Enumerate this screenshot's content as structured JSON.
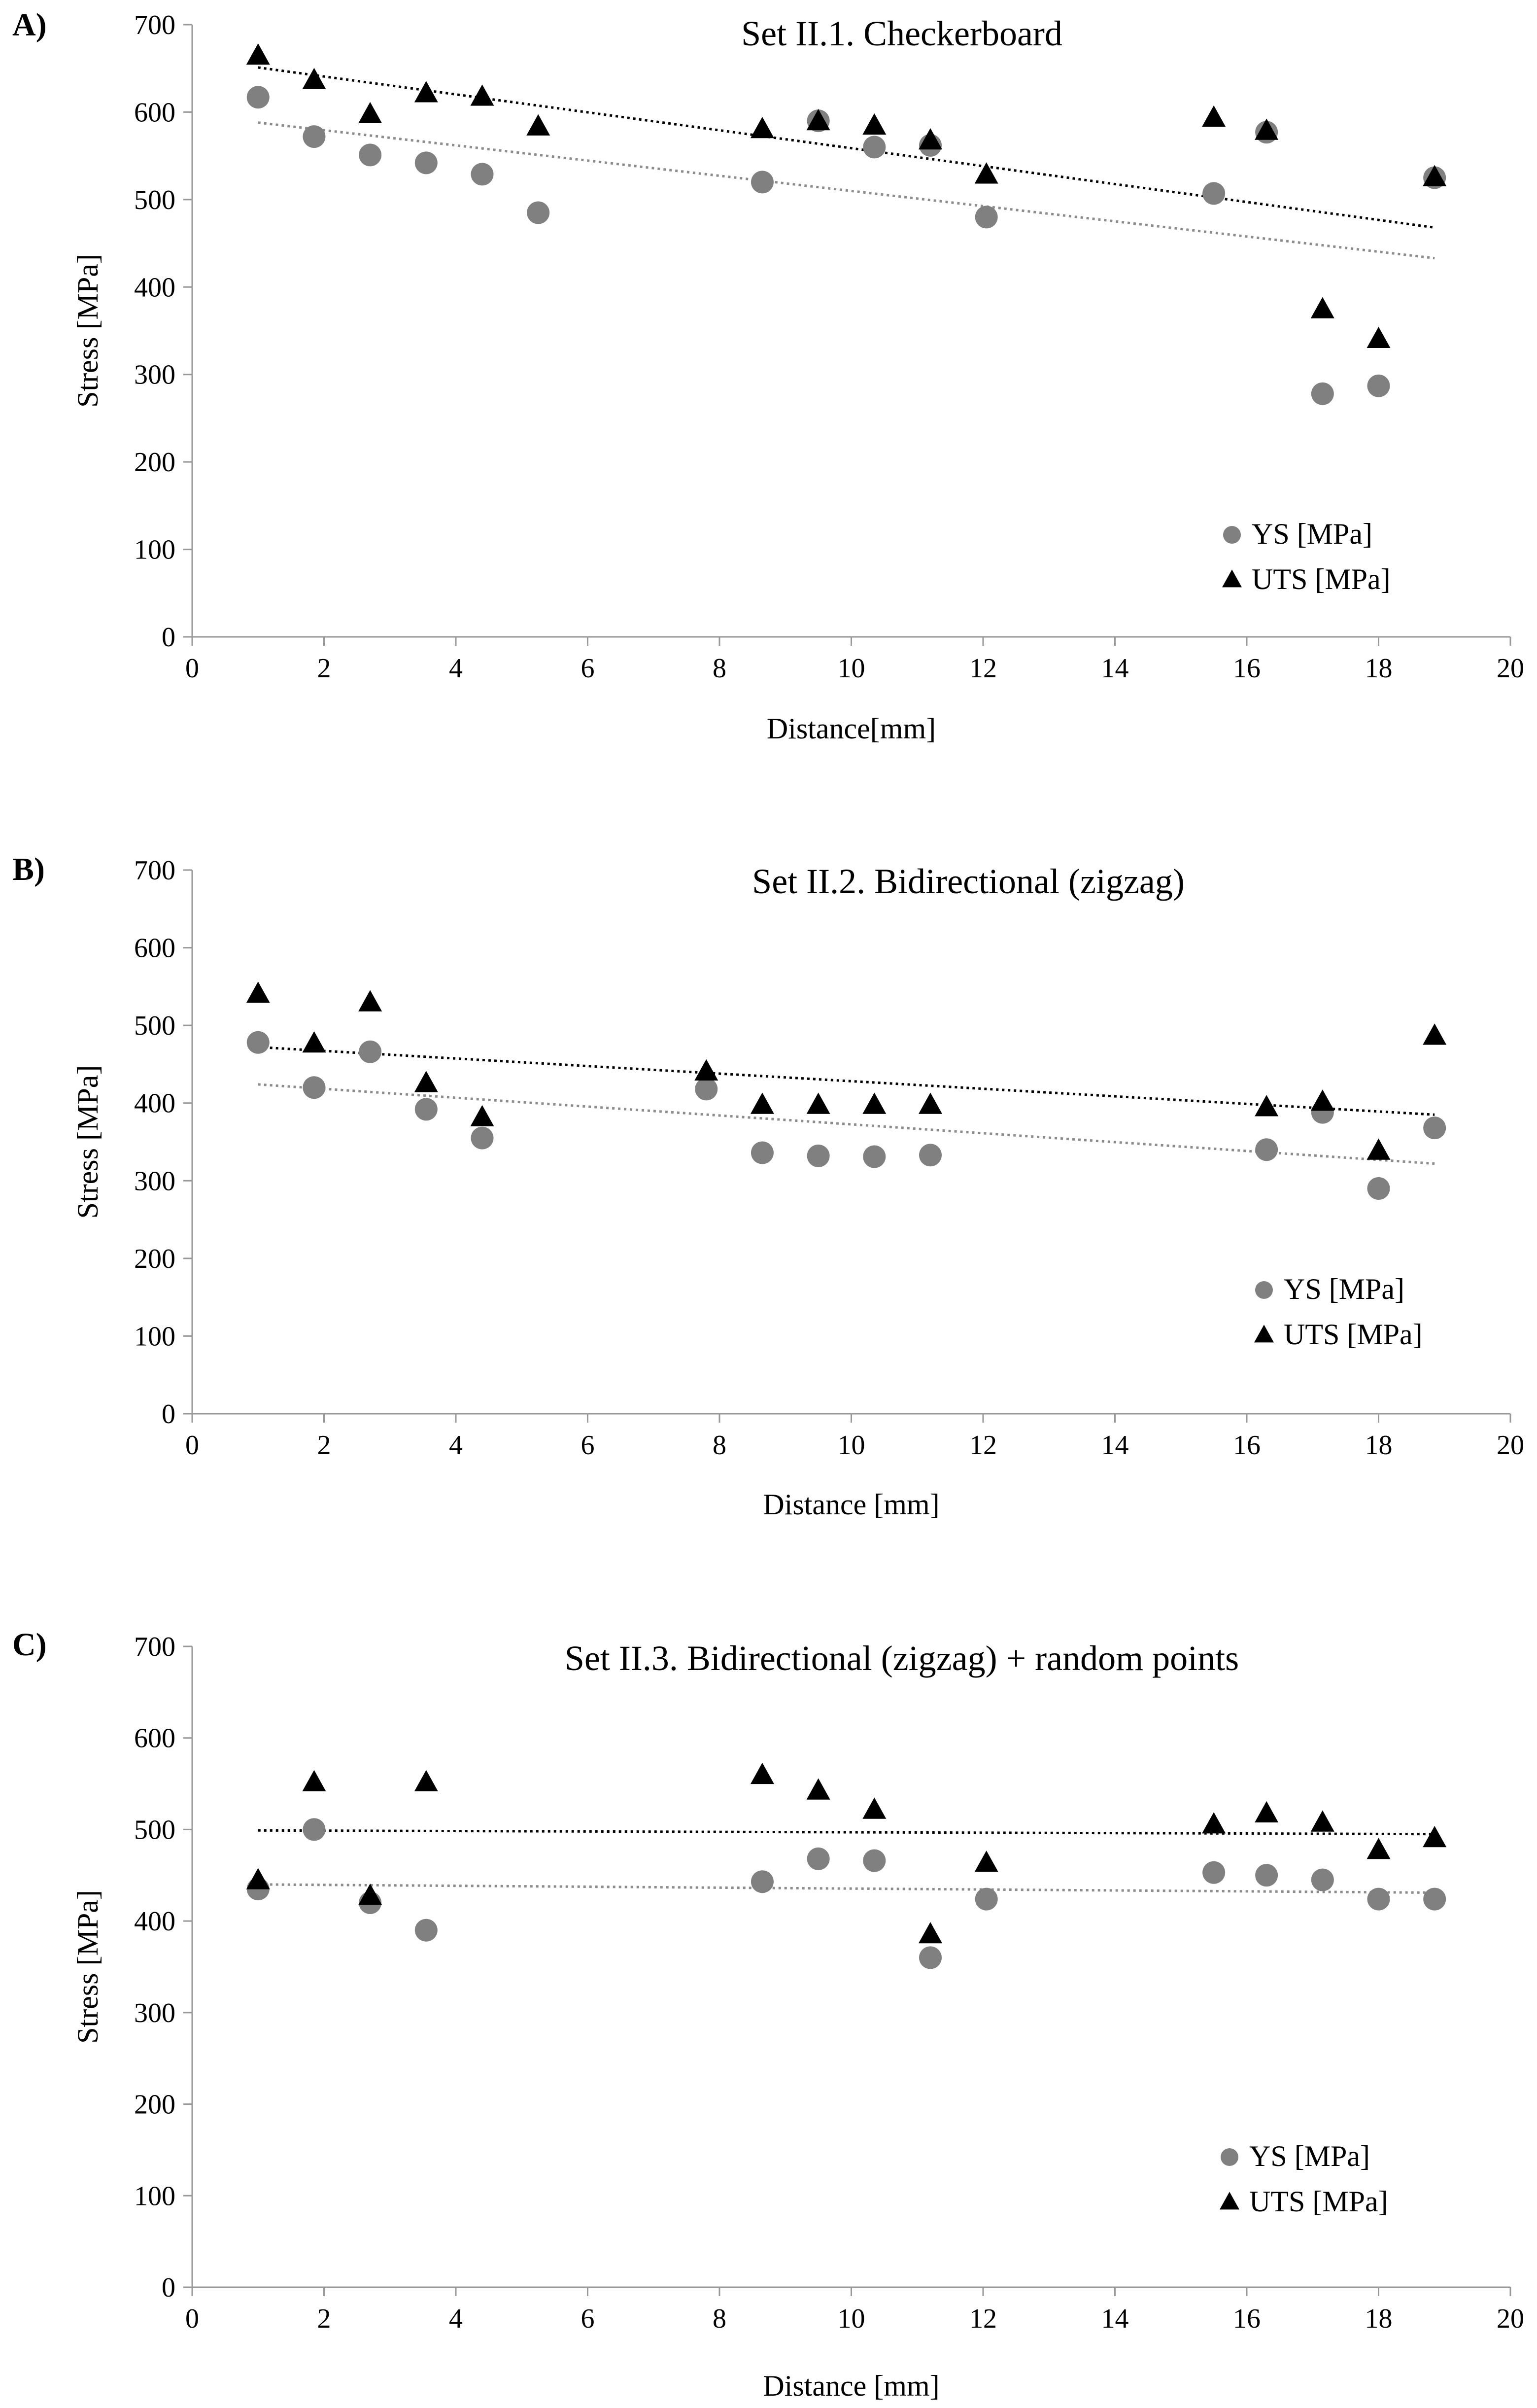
{
  "colors": {
    "ys": "#808080",
    "uts": "#000000",
    "ys_trend": "#8c8c8c",
    "uts_trend": "#000000",
    "axis": "#999999"
  },
  "chart_data": [
    {
      "panel": "A)",
      "type": "scatter",
      "title": "Set II.1. Checkerboard",
      "xlabel": "Distance[mm]",
      "ylabel": "Stress [MPa]",
      "xlim": [
        0,
        20
      ],
      "ylim": [
        0,
        700
      ],
      "xticks": [
        0,
        2,
        4,
        6,
        8,
        10,
        12,
        14,
        16,
        18,
        20
      ],
      "yticks": [
        0,
        100,
        200,
        300,
        400,
        500,
        600,
        700
      ],
      "grid": false,
      "legend_position": "bottom-right",
      "series": [
        {
          "name": "YS [MPa]",
          "marker": "circle",
          "x": [
            1.0,
            1.85,
            2.7,
            3.55,
            4.4,
            5.25,
            8.65,
            9.5,
            10.35,
            11.2,
            12.05,
            15.5,
            16.3,
            17.15,
            18.0,
            18.85
          ],
          "y": [
            617,
            572,
            551,
            542,
            529,
            485,
            520,
            590,
            560,
            562,
            480,
            507,
            577,
            278,
            287,
            525
          ],
          "trend": {
            "x": [
              1.0,
              18.85
            ],
            "y": [
              588,
              433
            ]
          }
        },
        {
          "name": "UTS [MPa]",
          "marker": "triangle",
          "x": [
            1.0,
            1.85,
            2.7,
            3.55,
            4.4,
            5.25,
            8.65,
            9.5,
            10.35,
            11.2,
            12.05,
            15.5,
            16.3,
            17.15,
            18.0,
            18.85
          ],
          "y": [
            664,
            636,
            597,
            621,
            617,
            583,
            580,
            589,
            584,
            567,
            528,
            593,
            578,
            374,
            340,
            525
          ],
          "trend": {
            "x": [
              1.0,
              18.85
            ],
            "y": [
              651,
              468
            ]
          }
        }
      ]
    },
    {
      "panel": "B)",
      "type": "scatter",
      "title": "Set II.2. Bidirectional (zigzag)",
      "xlabel": "Distance [mm]",
      "ylabel": "Stress [MPa]",
      "xlim": [
        0,
        20
      ],
      "ylim": [
        0,
        700
      ],
      "xticks": [
        0,
        2,
        4,
        6,
        8,
        10,
        12,
        14,
        16,
        18,
        20
      ],
      "yticks": [
        0,
        100,
        200,
        300,
        400,
        500,
        600,
        700
      ],
      "grid": false,
      "legend_position": "bottom-right",
      "series": [
        {
          "name": "YS [MPa]",
          "marker": "circle",
          "x": [
            1.0,
            1.85,
            2.7,
            3.55,
            4.4,
            7.8,
            8.65,
            9.5,
            10.35,
            11.2,
            16.3,
            17.15,
            18.0,
            18.85
          ],
          "y": [
            478,
            420,
            466,
            392,
            355,
            418,
            336,
            332,
            331,
            333,
            340,
            388,
            290,
            368
          ],
          "trend": {
            "x": [
              1.0,
              18.85
            ],
            "y": [
              424,
              322
            ]
          }
        },
        {
          "name": "UTS [MPa]",
          "marker": "triangle",
          "x": [
            1.0,
            1.85,
            2.7,
            3.55,
            4.4,
            7.8,
            8.65,
            9.5,
            10.35,
            11.2,
            16.3,
            17.15,
            18.0,
            18.85
          ],
          "y": [
            540,
            476,
            529,
            425,
            381,
            440,
            397,
            397,
            397,
            397,
            394,
            401,
            338,
            486
          ],
          "trend": {
            "x": [
              1.0,
              18.85
            ],
            "y": [
              472,
              385
            ]
          }
        }
      ]
    },
    {
      "panel": "C)",
      "type": "scatter",
      "title": "Set II.3. Bidirectional (zigzag) + random points",
      "xlabel": "Distance [mm]",
      "ylabel": "Stress [MPa]",
      "xlim": [
        0,
        20
      ],
      "ylim": [
        0,
        700
      ],
      "xticks": [
        0,
        2,
        4,
        6,
        8,
        10,
        12,
        14,
        16,
        18,
        20
      ],
      "yticks": [
        0,
        100,
        200,
        300,
        400,
        500,
        600,
        700
      ],
      "grid": false,
      "legend_position": "bottom-right",
      "series": [
        {
          "name": "YS [MPa]",
          "marker": "circle",
          "x": [
            1.0,
            1.85,
            2.7,
            3.55,
            8.65,
            9.5,
            10.35,
            11.2,
            12.05,
            15.5,
            16.3,
            17.15,
            18.0,
            18.85
          ],
          "y": [
            435,
            500,
            420,
            390,
            443,
            468,
            466,
            360,
            424,
            453,
            450,
            445,
            424,
            424
          ],
          "trend": {
            "x": [
              1.0,
              18.85
            ],
            "y": [
              440,
              431
            ]
          }
        },
        {
          "name": "UTS [MPa]",
          "marker": "triangle",
          "x": [
            1.0,
            1.85,
            2.7,
            3.55,
            8.65,
            9.5,
            10.35,
            11.2,
            12.05,
            15.5,
            16.3,
            17.15,
            18.0,
            18.85
          ],
          "y": [
            444,
            551,
            427,
            551,
            559,
            542,
            521,
            385,
            463,
            505,
            517,
            507,
            477,
            490
          ],
          "trend": {
            "x": [
              1.0,
              18.85
            ],
            "y": [
              499,
              495
            ]
          }
        }
      ]
    }
  ]
}
